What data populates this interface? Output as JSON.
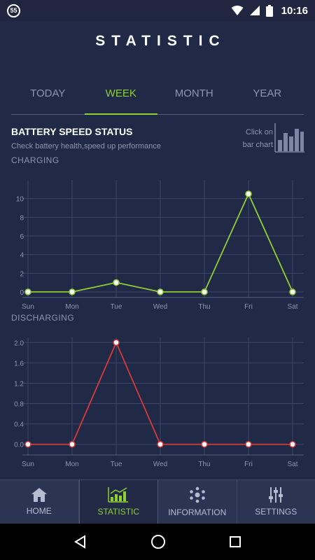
{
  "status_bar": {
    "notification_count": "55",
    "time": "10:16"
  },
  "page_title": "STATISTIC",
  "tabs": [
    {
      "label": "TODAY",
      "active": false
    },
    {
      "label": "WEEK",
      "active": true
    },
    {
      "label": "MONTH",
      "active": false
    },
    {
      "label": "YEAR",
      "active": false
    }
  ],
  "section": {
    "heading": "BATTERY SPEED STATUS",
    "subheading": "Check battery health,speed up performance",
    "hint_line1": "Click on",
    "hint_line2": "bar chart",
    "hint_icon": "bar-chart-icon"
  },
  "colors": {
    "background": "#202945",
    "accent": "#8ecf35",
    "charging_line": "#8ecf35",
    "discharging_line": "#d63a3a"
  },
  "chart_data": [
    {
      "type": "line",
      "label": "CHARGING",
      "categories": [
        "Sun",
        "Mon",
        "Tue",
        "Wed",
        "Thu",
        "Fri",
        "Sat"
      ],
      "values": [
        0,
        0,
        1,
        0,
        0,
        10.5,
        0
      ],
      "yticks": [
        "0",
        "2",
        "4",
        "6",
        "8",
        "10"
      ],
      "ylim": [
        0,
        12
      ],
      "grid": true
    },
    {
      "type": "line",
      "label": "DISCHARGING",
      "categories": [
        "Sun",
        "Mon",
        "Tue",
        "Wed",
        "Thu",
        "Fri",
        "Sat"
      ],
      "values": [
        0,
        0,
        2.0,
        0,
        0,
        0,
        0
      ],
      "yticks": [
        "0.0",
        "0.4",
        "0.8",
        "1.2",
        "1.6",
        "2.0"
      ],
      "ylim": [
        -0.1,
        2.1
      ],
      "grid": true
    }
  ],
  "bottom_nav": [
    {
      "label": "HOME",
      "icon": "home-icon",
      "active": false
    },
    {
      "label": "STATISTIC",
      "icon": "statistic-icon",
      "active": true
    },
    {
      "label": "INFORMATION",
      "icon": "information-icon",
      "active": false
    },
    {
      "label": "SETTINGS",
      "icon": "settings-icon",
      "active": false
    }
  ]
}
